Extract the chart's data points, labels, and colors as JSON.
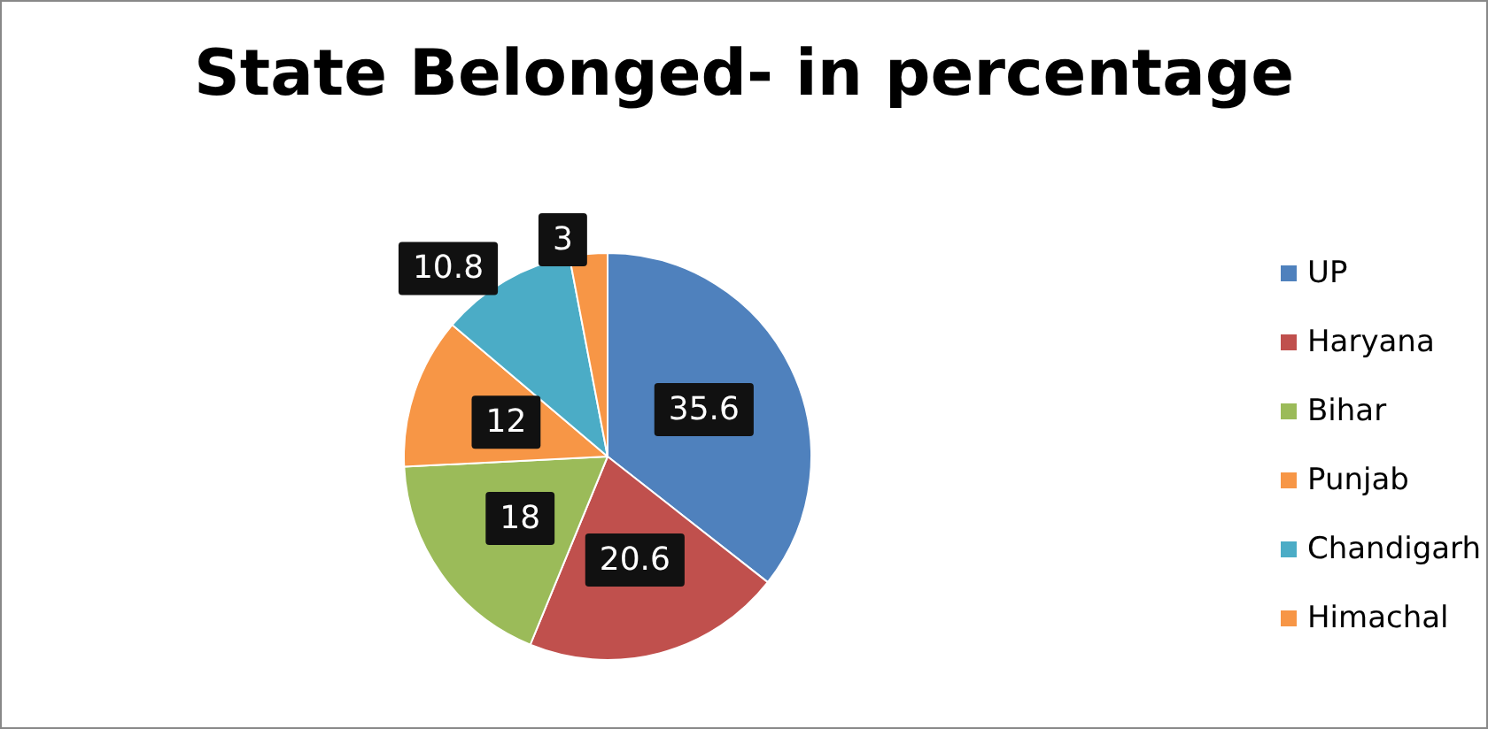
{
  "chart_data": {
    "type": "pie",
    "title": "State Belonged- in percentage",
    "categories": [
      "UP",
      "Haryana",
      "Bihar",
      "Punjab",
      "Chandigarh",
      "Himachal"
    ],
    "values": [
      35.6,
      20.6,
      18,
      12,
      10.8,
      3
    ],
    "colors": [
      "#4f81bd",
      "#c0504d",
      "#9bbb59",
      "#f79646",
      "#4bacc6",
      "#f79646"
    ],
    "data_labels": true,
    "legend": "right"
  }
}
